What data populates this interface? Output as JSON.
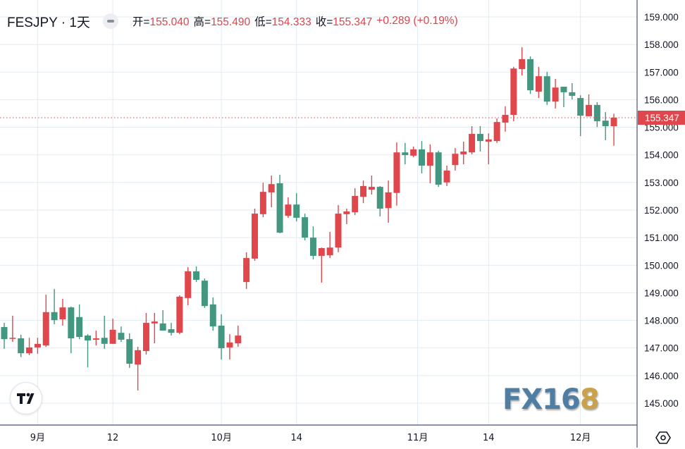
{
  "header": {
    "symbol": "FESJPY · 1天",
    "open_label": "开=",
    "open": "155.040",
    "high_label": "高=",
    "high": "155.490",
    "low_label": "低=",
    "low": "154.333",
    "close_label": "收=",
    "close": "155.347",
    "change": "+0.289 (+0.19%)"
  },
  "watermark": {
    "text_blue": "FX16",
    "text_gold": "8"
  },
  "colors": {
    "up": "#e0474c",
    "down": "#43967f",
    "grid": "#e1ecf2",
    "axis": "#4a5270",
    "text": "#131722",
    "price_line": "#e0474c"
  },
  "icons": {
    "hide": "minus-circle-icon",
    "logo": "tradingview-logo-icon",
    "settings": "gear-icon"
  },
  "chart_data": {
    "type": "candlestick",
    "title": "FESJPY · 1天",
    "up_color_meaning": "red = rise, green = fall",
    "ylim": [
      144.4,
      159.6
    ],
    "y_ticks": [
      "145.000",
      "146.000",
      "147.000",
      "148.000",
      "149.000",
      "150.000",
      "151.000",
      "152.000",
      "153.000",
      "154.000",
      "155.000",
      "156.000",
      "157.000",
      "158.000",
      "159.000"
    ],
    "x_ticks": [
      {
        "label": "9月",
        "index": 4
      },
      {
        "label": "12",
        "index": 13
      },
      {
        "label": "10月",
        "index": 26
      },
      {
        "label": "14",
        "index": 35
      },
      {
        "label": "11月",
        "index": 49.5
      },
      {
        "label": "14",
        "index": 58
      },
      {
        "label": "12月",
        "index": 69
      }
    ],
    "last_price": "155.347",
    "grid": true,
    "candles_ohlc": [
      [
        147.76,
        147.91,
        146.97,
        147.32
      ],
      [
        147.33,
        148.17,
        147.22,
        147.37
      ],
      [
        147.35,
        147.48,
        146.67,
        146.81
      ],
      [
        146.81,
        147.37,
        146.74,
        147.02
      ],
      [
        147.02,
        147.37,
        146.79,
        147.15
      ],
      [
        147.09,
        148.93,
        147.04,
        148.3
      ],
      [
        148.3,
        149.14,
        147.86,
        148.01
      ],
      [
        148.04,
        148.78,
        147.81,
        148.47
      ],
      [
        148.47,
        148.5,
        146.81,
        147.35
      ],
      [
        148.12,
        148.58,
        147.32,
        147.4
      ],
      [
        147.45,
        147.5,
        146.3,
        147.27
      ],
      [
        147.3,
        147.63,
        147.09,
        147.35
      ],
      [
        147.37,
        148.17,
        146.97,
        147.15
      ],
      [
        147.15,
        148.06,
        147.15,
        147.66
      ],
      [
        147.55,
        147.78,
        147.22,
        147.3
      ],
      [
        147.32,
        147.53,
        146.28,
        146.43
      ],
      [
        146.4,
        147.04,
        145.46,
        146.92
      ],
      [
        146.89,
        148.27,
        146.76,
        147.91
      ],
      [
        147.89,
        148.27,
        147.17,
        147.96
      ],
      [
        147.89,
        148.37,
        147.63,
        147.63
      ],
      [
        147.68,
        147.91,
        147.45,
        147.55
      ],
      [
        147.55,
        148.91,
        147.5,
        148.86
      ],
      [
        148.81,
        149.93,
        148.55,
        149.78
      ],
      [
        149.78,
        149.96,
        149.39,
        149.47
      ],
      [
        149.44,
        149.52,
        148.45,
        148.52
      ],
      [
        148.58,
        148.83,
        147.63,
        147.78
      ],
      [
        147.81,
        148.22,
        146.58,
        146.99
      ],
      [
        147.02,
        147.5,
        146.58,
        147.2
      ],
      [
        147.17,
        147.81,
        147.04,
        147.45
      ],
      [
        149.39,
        150.47,
        149.14,
        150.26
      ],
      [
        150.24,
        152.05,
        150.16,
        151.87
      ],
      [
        151.85,
        152.99,
        151.74,
        152.66
      ],
      [
        152.64,
        153.25,
        152.1,
        152.94
      ],
      [
        152.97,
        153.28,
        151.16,
        151.18
      ],
      [
        151.79,
        152.46,
        151.72,
        152.2
      ],
      [
        152.2,
        152.61,
        151.59,
        151.72
      ],
      [
        151.74,
        151.87,
        150.9,
        151.0
      ],
      [
        151.0,
        151.41,
        150.21,
        150.34
      ],
      [
        150.34,
        150.64,
        149.37,
        150.62
      ],
      [
        150.36,
        151.21,
        150.26,
        150.64
      ],
      [
        150.64,
        152.18,
        150.47,
        151.87
      ],
      [
        151.85,
        152.05,
        151.49,
        151.95
      ],
      [
        151.92,
        152.79,
        151.82,
        152.51
      ],
      [
        152.48,
        153.07,
        152.25,
        152.87
      ],
      [
        152.74,
        153.25,
        152.56,
        152.84
      ],
      [
        152.84,
        152.87,
        151.77,
        152.05
      ],
      [
        152.07,
        153.07,
        151.54,
        152.64
      ],
      [
        152.62,
        154.45,
        152.16,
        154.09
      ],
      [
        154.09,
        154.43,
        153.66,
        153.99
      ],
      [
        153.97,
        154.3,
        153.92,
        154.2
      ],
      [
        154.2,
        154.5,
        153.33,
        153.61
      ],
      [
        153.61,
        154.38,
        152.97,
        154.09
      ],
      [
        154.09,
        154.15,
        152.84,
        152.92
      ],
      [
        153.0,
        153.61,
        152.87,
        153.43
      ],
      [
        153.63,
        154.25,
        153.43,
        154.04
      ],
      [
        154.02,
        154.48,
        153.66,
        154.12
      ],
      [
        154.09,
        155.04,
        154.02,
        154.76
      ],
      [
        154.76,
        155.04,
        154.12,
        154.5
      ],
      [
        154.48,
        154.78,
        153.66,
        154.56
      ],
      [
        154.5,
        155.32,
        154.43,
        155.19
      ],
      [
        155.17,
        155.76,
        154.84,
        155.45
      ],
      [
        155.45,
        157.19,
        155.22,
        157.13
      ],
      [
        157.11,
        157.9,
        156.88,
        157.47
      ],
      [
        157.47,
        157.57,
        156.21,
        156.34
      ],
      [
        156.29,
        157.19,
        156.06,
        156.85
      ],
      [
        156.85,
        157.01,
        155.81,
        155.93
      ],
      [
        155.93,
        156.75,
        155.68,
        156.44
      ],
      [
        156.47,
        156.47,
        155.73,
        156.27
      ],
      [
        156.27,
        156.6,
        156.01,
        156.14
      ],
      [
        156.06,
        156.16,
        154.68,
        155.42
      ],
      [
        155.4,
        156.19,
        155.4,
        155.81
      ],
      [
        155.81,
        155.91,
        155.01,
        155.22
      ],
      [
        155.24,
        155.55,
        154.53,
        155.04
      ],
      [
        155.04,
        155.49,
        154.333,
        155.347
      ]
    ]
  }
}
